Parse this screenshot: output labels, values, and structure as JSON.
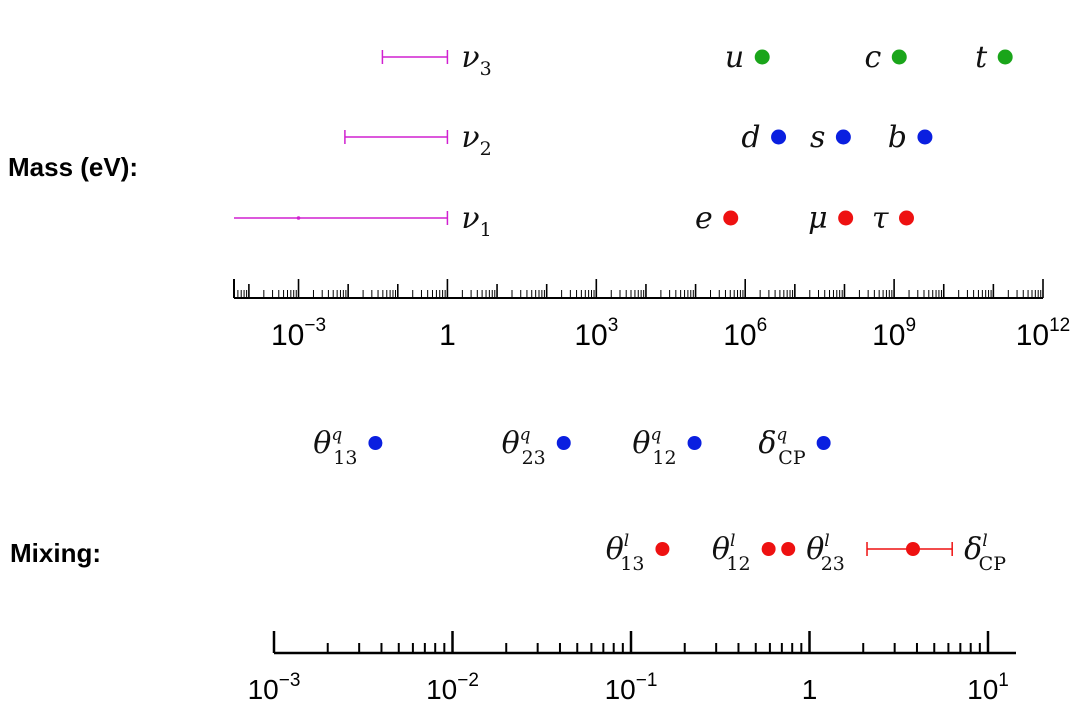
{
  "labels": {
    "mass": "Mass (eV):",
    "mixing": "Mixing:"
  },
  "colors": {
    "neutrino": "#d020d0",
    "up_quarks": "#1aa51a",
    "down_quarks": "#0a1fe0",
    "leptons": "#ee1111",
    "axis": "#000000"
  },
  "chart_data": [
    {
      "type": "scatter",
      "name": "mass",
      "scale": "log10",
      "xlim": [
        -4.3,
        12
      ],
      "tick_labels": [
        {
          "exp": -3,
          "base": "10",
          "sup": "−3"
        },
        {
          "exp": 0,
          "base": "1",
          "sup": ""
        },
        {
          "exp": 3,
          "base": "10",
          "sup": "3"
        },
        {
          "exp": 6,
          "base": "10",
          "sup": "6"
        },
        {
          "exp": 9,
          "base": "10",
          "sup": "9"
        },
        {
          "exp": 12,
          "base": "10",
          "sup": "12"
        }
      ],
      "neutrinos": [
        {
          "symbol": "ν",
          "sub": "3",
          "row": 0,
          "range": [
            0.049,
            1
          ],
          "mid": null
        },
        {
          "symbol": "ν",
          "sub": "2",
          "row": 1,
          "range": [
            0.0086,
            1
          ],
          "mid": null
        },
        {
          "symbol": "ν",
          "sub": "1",
          "row": 2,
          "range": [
            5e-05,
            1
          ],
          "mid": 0.001
        }
      ],
      "particles": [
        {
          "symbol": "u",
          "row": 0,
          "group": "up_quarks",
          "mass_eV": 2200000,
          "label_side": "left"
        },
        {
          "symbol": "c",
          "row": 0,
          "group": "up_quarks",
          "mass_eV": 1270000000,
          "label_side": "left"
        },
        {
          "symbol": "t",
          "row": 0,
          "group": "up_quarks",
          "mass_eV": 173000000000,
          "label_side": "left"
        },
        {
          "symbol": "d",
          "row": 1,
          "group": "down_quarks",
          "mass_eV": 4700000,
          "label_side": "left"
        },
        {
          "symbol": "s",
          "row": 1,
          "group": "down_quarks",
          "mass_eV": 95000000,
          "label_side": "left"
        },
        {
          "symbol": "b",
          "row": 1,
          "group": "down_quarks",
          "mass_eV": 4180000000,
          "label_side": "left"
        },
        {
          "symbol": "e",
          "row": 2,
          "group": "leptons",
          "mass_eV": 511000,
          "label_side": "left"
        },
        {
          "symbol": "μ",
          "row": 2,
          "group": "leptons",
          "mass_eV": 105700000,
          "label_side": "left"
        },
        {
          "symbol": "τ",
          "row": 2,
          "group": "leptons",
          "mass_eV": 1777000000,
          "label_side": "left"
        }
      ]
    },
    {
      "type": "scatter",
      "name": "mixing",
      "scale": "log10",
      "xlim": [
        -3,
        1.15
      ],
      "tick_labels": [
        {
          "exp": -3,
          "base": "10",
          "sup": "−3"
        },
        {
          "exp": -2,
          "base": "10",
          "sup": "−2"
        },
        {
          "exp": -1,
          "base": "10",
          "sup": "−1"
        },
        {
          "exp": 0,
          "base": "1",
          "sup": ""
        },
        {
          "exp": 1,
          "base": "10",
          "sup": "1"
        }
      ],
      "quark_points": [
        {
          "symbol": "θ",
          "sub": "13",
          "sup": "q",
          "value": 0.0037
        },
        {
          "symbol": "θ",
          "sub": "23",
          "sup": "q",
          "value": 0.042
        },
        {
          "symbol": "θ",
          "sub": "12",
          "sup": "q",
          "value": 0.227
        },
        {
          "symbol": "δ",
          "sub": "CP",
          "sup": "q",
          "value": 1.2
        }
      ],
      "lepton_points": [
        {
          "symbol": "θ",
          "sub": "13",
          "sup": "l",
          "value": 0.15,
          "label_side": "left"
        },
        {
          "symbol": "θ",
          "sub": "12",
          "sup": "l",
          "value": 0.59,
          "label_side": "left"
        },
        {
          "symbol": "θ",
          "sub": "23",
          "sup": "l",
          "value": 0.76,
          "label_side": "right"
        },
        {
          "symbol": "δ",
          "sub": "CP",
          "sup": "l",
          "value": 3.8,
          "range": [
            2.1,
            6.3
          ],
          "label_side": "right"
        }
      ]
    }
  ]
}
